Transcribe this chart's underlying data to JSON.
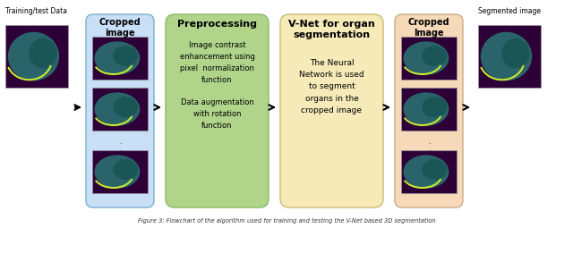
{
  "bg_color": "#ffffff",
  "box1_label": "Training/test Data",
  "box2_label": "Cropped\nimage",
  "box3_label": "Preprocessing",
  "box3_text": "Image contrast\nenhancement using\npixel  normalization\nfunction\n\nData augmentation\nwith rotation\nfunction",
  "box4_label": "V-Net for organ\nsegmentation",
  "box4_text": "The Neural\nNetwork is used\nto segment\norgans in the\ncropped image",
  "box5_label": "Cropped\nImage",
  "box6_label": "Segmented image",
  "box2_color": "#c8dff5",
  "box3_color": "#afd48a",
  "box4_color": "#f5eab8",
  "box5_color": "#f5d9b8",
  "img_bg": "#2d0038",
  "caption": "Figure 3: Flowchart of the algorithm used for training and testing the V-Net based 3D segmentation"
}
